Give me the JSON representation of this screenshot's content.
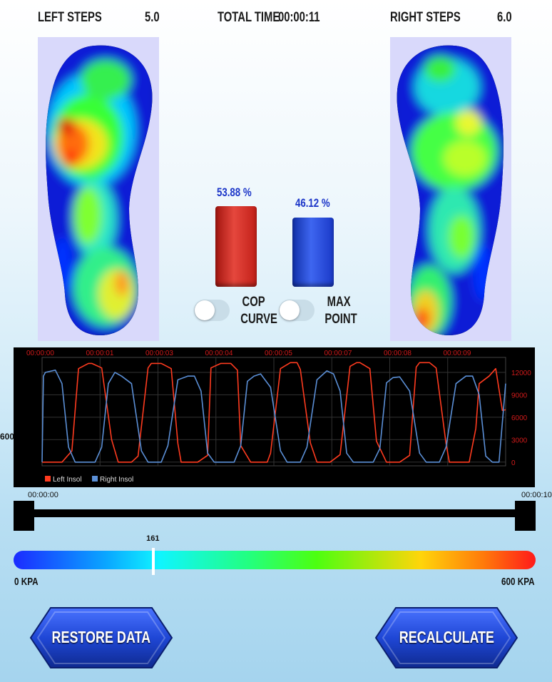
{
  "header": {
    "left_label": "LEFT STEPS",
    "left_value": "5.0",
    "time_label": "TOTAL TIME",
    "time_value": "00:00:11",
    "right_label": "RIGHT STEPS",
    "right_value": "6.0"
  },
  "balance": {
    "left_percent": "53.88 %",
    "left_fraction": 0.5388,
    "left_color": "#d8312b",
    "right_percent": "46.12 %",
    "right_fraction": 0.4612,
    "right_color": "#2040d8"
  },
  "toggles": {
    "cop_curve": {
      "line1": "COP",
      "line2": "CURVE",
      "on": false
    },
    "max_point": {
      "line1": "MAX",
      "line2": "POINT",
      "on": false
    }
  },
  "chart_data": {
    "type": "line",
    "time_labels": [
      "00:00:00",
      "00:00:01",
      "00:00:03",
      "00:00:04",
      "00:00:05",
      "00:00:07",
      "00:00:08",
      "00:00:09"
    ],
    "y_ticks": [
      12000,
      9000,
      6000,
      3000,
      0
    ],
    "ylim": [
      -500,
      14000
    ],
    "left_axis_fragment": "600",
    "grid": true,
    "legend_position": "bottom-left",
    "series": [
      {
        "name": "Left Insol",
        "color": "#ff3b1f",
        "x": [
          0.0,
          0.25,
          0.3,
          0.45,
          0.55,
          0.7,
          0.75,
          0.9,
          1.05,
          1.15,
          1.2,
          1.35,
          1.45,
          1.6,
          1.65,
          1.8,
          1.95,
          2.05,
          2.1,
          2.25,
          2.35,
          2.5,
          2.55,
          2.7,
          2.85,
          2.95,
          3.0,
          3.15,
          3.25,
          3.4,
          3.45,
          3.6,
          3.75,
          3.85,
          3.9,
          4.05,
          4.15,
          4.3,
          4.35,
          4.5,
          4.65,
          4.75,
          4.8,
          4.95,
          5.05,
          5.2,
          5.25,
          5.4,
          5.55,
          5.65,
          5.7,
          5.85,
          5.95,
          6.1,
          6.15,
          6.3,
          6.45,
          6.55,
          6.6,
          6.75,
          6.85,
          6.95,
          7.0
        ],
        "y": [
          0,
          0,
          0,
          1500,
          12500,
          13200,
          13200,
          12600,
          3000,
          0,
          0,
          0,
          800,
          12600,
          13200,
          13200,
          12500,
          2500,
          0,
          0,
          0,
          900,
          12600,
          13200,
          13200,
          12300,
          2200,
          0,
          0,
          0,
          1200,
          12500,
          13300,
          13300,
          12400,
          2600,
          0,
          0,
          0,
          1000,
          12800,
          13300,
          13300,
          12500,
          2800,
          0,
          0,
          0,
          900,
          12700,
          13300,
          13300,
          12600,
          2500,
          0,
          0,
          0,
          4500,
          10500,
          11500,
          12500,
          6900,
          7000
        ]
      },
      {
        "name": "Right Insol",
        "color": "#5b8fd6",
        "x": [
          0.0,
          0.02,
          0.05,
          0.2,
          0.3,
          0.4,
          0.5,
          0.65,
          0.8,
          0.9,
          1.0,
          1.1,
          1.2,
          1.35,
          1.5,
          1.6,
          1.7,
          1.8,
          1.9,
          2.05,
          2.2,
          2.3,
          2.4,
          2.5,
          2.6,
          2.75,
          2.9,
          3.0,
          3.1,
          3.2,
          3.3,
          3.45,
          3.6,
          3.7,
          3.8,
          3.9,
          4.0,
          4.15,
          4.3,
          4.4,
          4.5,
          4.6,
          4.7,
          4.85,
          5.0,
          5.1,
          5.2,
          5.3,
          5.4,
          5.55,
          5.7,
          5.8,
          5.9,
          6.0,
          6.1,
          6.25,
          6.4,
          6.5,
          6.6,
          6.7,
          6.8,
          6.9,
          7.0
        ],
        "y": [
          0,
          11500,
          12000,
          12300,
          10500,
          2000,
          0,
          0,
          0,
          2000,
          10500,
          12000,
          11500,
          10500,
          1500,
          0,
          0,
          0,
          2200,
          11000,
          11500,
          11500,
          9500,
          1200,
          0,
          0,
          0,
          2200,
          10800,
          11500,
          11800,
          10000,
          1500,
          0,
          0,
          0,
          2000,
          11000,
          12200,
          11800,
          9500,
          1200,
          0,
          0,
          0,
          1800,
          10600,
          11300,
          11400,
          9500,
          1200,
          0,
          0,
          0,
          2000,
          10500,
          11500,
          11500,
          9000,
          800,
          0,
          0,
          10500
        ]
      }
    ]
  },
  "timeline": {
    "start": "00:00:00",
    "end": "00:00:10"
  },
  "scale": {
    "marker_value": "161",
    "marker_fraction": 0.268,
    "min_label": "0 KPA",
    "max_label": "600 KPA"
  },
  "buttons": {
    "restore": "RESTORE DATA",
    "recalculate": "RECALCULATE"
  },
  "colors": {
    "button_blue": "#1f47d6",
    "chart_bg": "#000000",
    "chart_time_text": "#d11a1a",
    "axis_text": "#d11a1a"
  }
}
